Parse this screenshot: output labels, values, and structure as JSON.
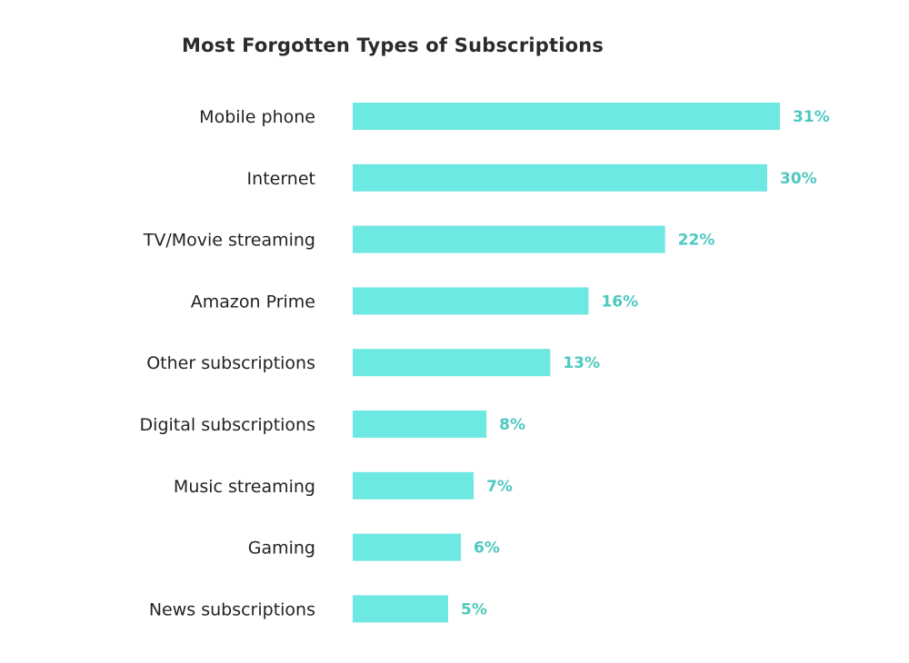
{
  "chart_data": {
    "type": "bar",
    "orientation": "horizontal",
    "title": "Most Forgotten Types of Subscriptions",
    "categories": [
      "Mobile phone",
      "Internet",
      "TV/Movie streaming",
      "Amazon Prime",
      "Other subscriptions",
      "Digital subscriptions",
      "Music streaming",
      "Gaming",
      "News subscriptions"
    ],
    "values": [
      31,
      30,
      22,
      16,
      13,
      8,
      7,
      6,
      5
    ],
    "data_labels": [
      "31%",
      "30%",
      "22%",
      "16%",
      "13%",
      "8%",
      "7%",
      "6%",
      "5%"
    ],
    "unit": "%",
    "grid": false,
    "legend": "none",
    "bar_color": "#6ee8e2",
    "label_color": "#4cc9c0"
  }
}
